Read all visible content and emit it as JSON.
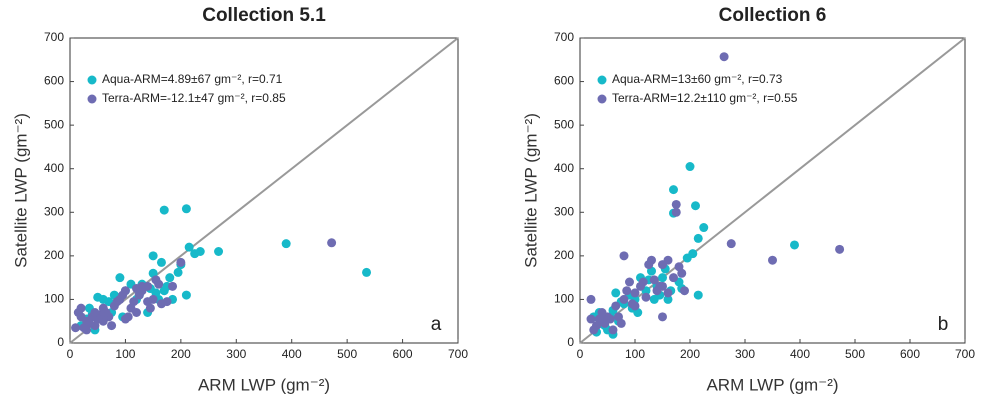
{
  "chart_data": [
    {
      "type": "scatter",
      "title": "Collection 5.1",
      "xlabel": "ARM LWP (gm⁻²)",
      "ylabel": "Satellite LWP (gm⁻²)",
      "annotation": "a",
      "xlim": [
        0,
        700
      ],
      "xticks": [
        0,
        100,
        200,
        300,
        400,
        500,
        600,
        700
      ],
      "ylim": [
        0,
        700
      ],
      "yticks": [
        0,
        100,
        200,
        300,
        400,
        500,
        600,
        700
      ],
      "legend": "upper left",
      "diagonal": true,
      "series": [
        {
          "name": "Aqua-ARM=4.89±67 gm⁻², r=0.71",
          "color": "#17b9c9",
          "x": [
            535,
            390,
            268,
            210,
            170,
            215,
            210,
            225,
            235,
            195,
            200,
            165,
            150,
            150,
            175,
            130,
            145,
            140,
            120,
            110,
            90,
            80,
            70,
            50,
            60,
            40,
            30,
            20,
            35,
            55,
            100,
            125,
            170,
            185,
            155,
            95,
            75,
            45,
            180,
            160
          ],
          "values": [
            162,
            228,
            210,
            308,
            305,
            220,
            110,
            205,
            210,
            162,
            180,
            185,
            200,
            160,
            130,
            135,
            125,
            70,
            100,
            135,
            150,
            110,
            95,
            105,
            100,
            65,
            55,
            40,
            80,
            60,
            120,
            110,
            120,
            100,
            115,
            60,
            70,
            30,
            150,
            100
          ]
        },
        {
          "name": "Terra-ARM=-12.1±47 gm⁻², r=0.85",
          "color": "#6e6cb2",
          "x": [
            472,
            200,
            155,
            140,
            130,
            125,
            120,
            115,
            110,
            100,
            95,
            90,
            85,
            80,
            75,
            70,
            65,
            60,
            55,
            50,
            45,
            40,
            35,
            30,
            25,
            20,
            15,
            10,
            20,
            30,
            45,
            150,
            165,
            175,
            160,
            145,
            105,
            100,
            130,
            185,
            140,
            120,
            60
          ],
          "values": [
            230,
            185,
            145,
            130,
            120,
            110,
            125,
            95,
            80,
            120,
            110,
            100,
            95,
            85,
            40,
            60,
            70,
            50,
            65,
            55,
            40,
            60,
            45,
            50,
            35,
            80,
            70,
            35,
            60,
            30,
            70,
            100,
            90,
            95,
            135,
            80,
            60,
            55,
            130,
            130,
            95,
            70,
            80
          ]
        }
      ]
    },
    {
      "type": "scatter",
      "title": "Collection 6",
      "xlabel": "ARM LWP (gm⁻²)",
      "ylabel": "Satellite LWP (gm⁻²)",
      "annotation": "b",
      "xlim": [
        0,
        700
      ],
      "xticks": [
        0,
        100,
        200,
        300,
        400,
        500,
        600,
        700
      ],
      "ylim": [
        0,
        700
      ],
      "yticks": [
        0,
        100,
        200,
        300,
        400,
        500,
        600,
        700
      ],
      "legend": "upper left",
      "diagonal": true,
      "series": [
        {
          "name": "Aqua-ARM=13±60 gm⁻², r=0.73",
          "color": "#17b9c9",
          "x": [
            390,
            200,
            170,
            170,
            210,
            225,
            215,
            195,
            205,
            215,
            185,
            160,
            150,
            140,
            130,
            125,
            120,
            110,
            100,
            95,
            90,
            80,
            75,
            65,
            60,
            55,
            50,
            45,
            40,
            30,
            25,
            35,
            70,
            155,
            180,
            165,
            60,
            105,
            145,
            135
          ],
          "values": [
            225,
            405,
            352,
            298,
            315,
            265,
            240,
            195,
            205,
            110,
            125,
            100,
            150,
            130,
            165,
            145,
            120,
            150,
            100,
            80,
            110,
            90,
            95,
            115,
            75,
            60,
            30,
            40,
            50,
            25,
            60,
            70,
            50,
            170,
            140,
            120,
            20,
            70,
            110,
            100
          ]
        },
        {
          "name": "Terra-ARM=12.2±110 gm⁻², r=0.55",
          "color": "#6e6cb2",
          "x": [
            262,
            472,
            350,
            275,
            175,
            175,
            185,
            190,
            180,
            170,
            160,
            150,
            150,
            145,
            140,
            130,
            125,
            120,
            115,
            110,
            100,
            95,
            90,
            85,
            80,
            80,
            75,
            70,
            65,
            55,
            50,
            45,
            40,
            35,
            30,
            25,
            20,
            20,
            100,
            135,
            160,
            150,
            60
          ],
          "values": [
            657,
            215,
            190,
            228,
            318,
            300,
            160,
            120,
            175,
            150,
            190,
            180,
            60,
            130,
            120,
            190,
            180,
            105,
            140,
            130,
            115,
            90,
            140,
            120,
            200,
            100,
            45,
            60,
            85,
            55,
            60,
            45,
            70,
            55,
            40,
            30,
            100,
            55,
            85,
            145,
            115,
            130,
            30
          ]
        }
      ]
    }
  ]
}
